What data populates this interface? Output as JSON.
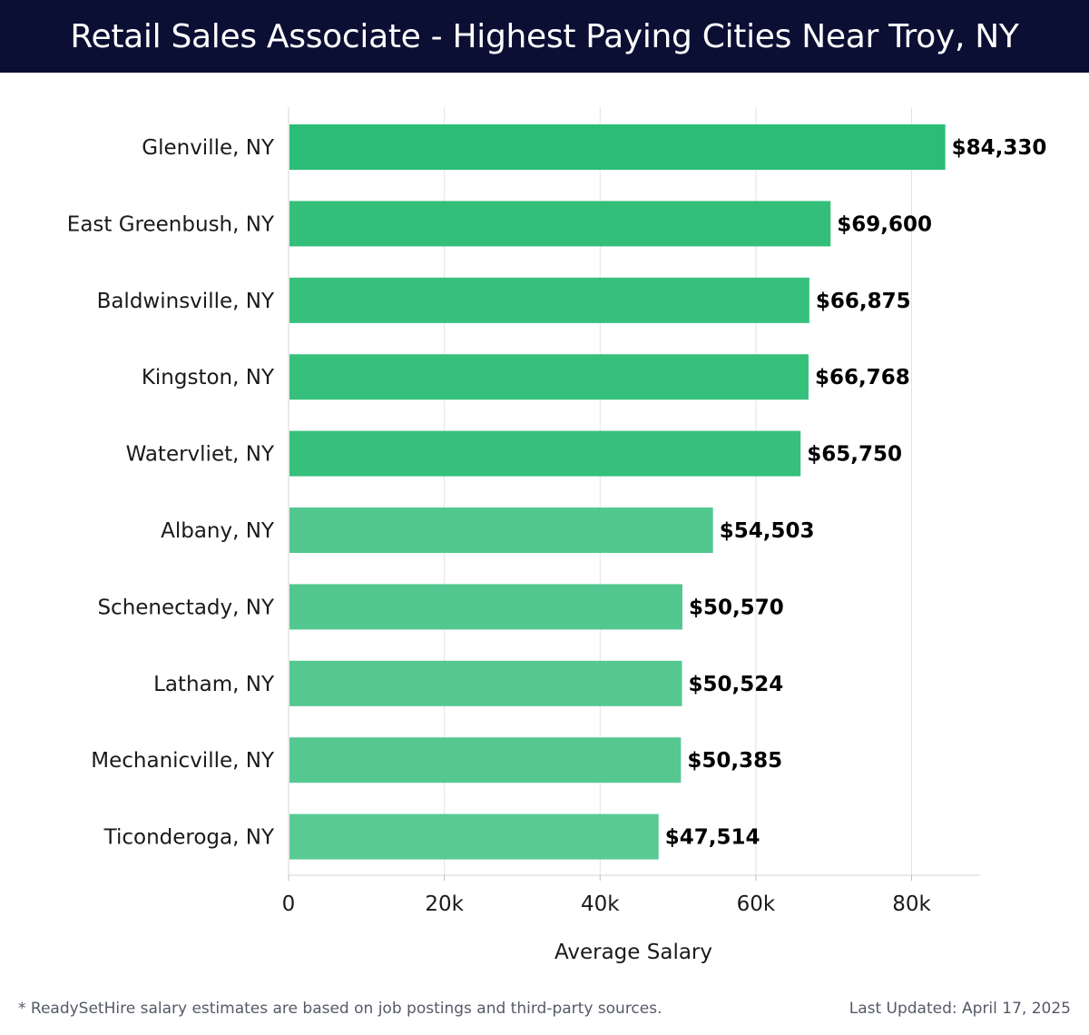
{
  "header": {
    "title": "Retail Sales Associate - Highest Paying Cities Near Troy, NY"
  },
  "chart_data": {
    "type": "bar",
    "orientation": "horizontal",
    "categories": [
      "Glenville, NY",
      "East Greenbush, NY",
      "Baldwinsville, NY",
      "Kingston, NY",
      "Watervliet, NY",
      "Albany, NY",
      "Schenectady, NY",
      "Latham, NY",
      "Mechanicville, NY",
      "Ticonderoga, NY"
    ],
    "values": [
      84330,
      69600,
      66875,
      66768,
      65750,
      54503,
      50570,
      50524,
      50385,
      47514
    ],
    "value_labels": [
      "$84,330",
      "$69,600",
      "$66,875",
      "$66,768",
      "$65,750",
      "$54,503",
      "$50,570",
      "$50,524",
      "$50,385",
      "$47,514"
    ],
    "bar_colors": [
      "#2bbd76",
      "#33bf7a",
      "#36c07c",
      "#36c07c",
      "#36c07c",
      "#52c78f",
      "#52c78f",
      "#55c891",
      "#55c891",
      "#59ca94"
    ],
    "xlabel": "Average Salary",
    "ylabel": "",
    "xlim": [
      0,
      88800
    ],
    "xticks": [
      0,
      20000,
      40000,
      60000,
      80000
    ],
    "xtick_labels": [
      "0",
      "20k",
      "40k",
      "60k",
      "80k"
    ],
    "grid": "vertical"
  },
  "footer": {
    "note": "* ReadySetHire salary estimates are based on job postings and third-party sources.",
    "updated": "Last Updated: April 17, 2025"
  }
}
